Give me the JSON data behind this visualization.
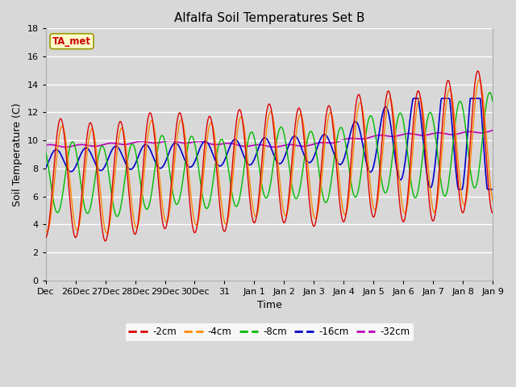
{
  "title": "Alfalfa Soil Temperatures Set B",
  "xlabel": "Time",
  "ylabel": "Soil Temperature (C)",
  "ylim": [
    0,
    18
  ],
  "yticks": [
    0,
    2,
    4,
    6,
    8,
    10,
    12,
    14,
    16,
    18
  ],
  "xtick_labels": [
    "Dec",
    "26Dec",
    "27Dec",
    "28Dec",
    "29Dec",
    "30Dec",
    "31",
    "Jan 1",
    "Jan 2",
    "Jan 3",
    "Jan 4",
    "Jan 5",
    "Jan 6",
    "Jan 7",
    "Jan 8",
    "Jan 9"
  ],
  "background_color": "#d8d8d8",
  "plot_bg_color": "#d8d8d8",
  "grid_color": "#ffffff",
  "line_colors": {
    "-2cm": "#dd0000",
    "-4cm": "#ff8800",
    "-8cm": "#00bb00",
    "-16cm": "#0000cc",
    "-32cm": "#bb00bb"
  },
  "legend_labels": [
    "-2cm",
    "-4cm",
    "-8cm",
    "-16cm",
    "-32cm"
  ],
  "ta_met_label": "TA_met",
  "ta_met_bg": "#ffffcc",
  "ta_met_border": "#999900",
  "ta_met_text_color": "#cc0000"
}
